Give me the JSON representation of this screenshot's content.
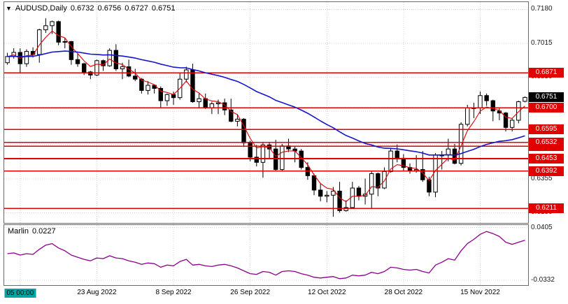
{
  "title": {
    "dropdown_icon": "▼",
    "symbol_period": "AUDUSD,Daily",
    "open": "0.6732",
    "high": "0.6756",
    "low": "0.6727",
    "close": "0.6751"
  },
  "indicator_label": {
    "name": "Marlin",
    "value": "0.0227"
  },
  "price_axis": {
    "ticks": [
      "0.7180",
      "0.7015",
      "0.6850",
      "0.6685",
      "0.6520",
      "0.6355",
      "0.6190"
    ],
    "current": {
      "label": "0.6751",
      "price": 0.6751
    }
  },
  "indicator_axis": {
    "ticks": [
      {
        "label": "0.0405",
        "value": 0.0405
      },
      {
        "label": "-0.0332",
        "value": -0.0332
      }
    ]
  },
  "time_axis": {
    "labels": [
      {
        "text": "05 00:00",
        "bar": 2,
        "highlight": true
      },
      {
        "text": "23 Aug 2022",
        "bar": 14
      },
      {
        "text": "8 Sep 2022",
        "bar": 26
      },
      {
        "text": "26 Sep 2022",
        "bar": 38
      },
      {
        "text": "12 Oct 2022",
        "bar": 50
      },
      {
        "text": "28 Oct 2022",
        "bar": 62
      },
      {
        "text": "15 Nov 2022",
        "bar": 74
      }
    ]
  },
  "colors": {
    "bull": "#ffffff",
    "bear": "#000000",
    "outline": "#000000",
    "ma_fast": "#e00000",
    "ma_slow": "#1515cc",
    "level": "#e00000",
    "level_badge_bg": "#e00000",
    "current_badge_bg": "#000000",
    "indicator_line": "#8b008b",
    "highlight_time_bg": "#00a2a2",
    "grid": "#d6d6d6"
  },
  "chart_data": {
    "type": "candlestick",
    "symbol": "AUDUSD",
    "timeframe": "Daily",
    "price_range": [
      0.614,
      0.7215
    ],
    "candles": [
      [
        "08-03",
        0.692,
        0.6968,
        0.691,
        0.695
      ],
      [
        "08-04",
        0.695,
        0.699,
        0.694,
        0.697
      ],
      [
        "08-05",
        0.697,
        0.699,
        0.687,
        0.6915
      ],
      [
        "08-08",
        0.6915,
        0.6985,
        0.69,
        0.6975
      ],
      [
        "08-09",
        0.6975,
        0.6995,
        0.6945,
        0.696
      ],
      [
        "08-10",
        0.696,
        0.7085,
        0.692,
        0.708
      ],
      [
        "08-11",
        0.708,
        0.7136,
        0.7065,
        0.71
      ],
      [
        "08-12",
        0.71,
        0.7125,
        0.706,
        0.712
      ],
      [
        "08-15",
        0.712,
        0.7125,
        0.7005,
        0.702
      ],
      [
        "08-16",
        0.702,
        0.704,
        0.699,
        0.7023
      ],
      [
        "08-17",
        0.7023,
        0.7026,
        0.691,
        0.6935
      ],
      [
        "08-18",
        0.6935,
        0.6965,
        0.69,
        0.6915
      ],
      [
        "08-19",
        0.6915,
        0.692,
        0.686,
        0.6875
      ],
      [
        "08-22",
        0.6875,
        0.688,
        0.684,
        0.686
      ],
      [
        "08-23",
        0.686,
        0.6935,
        0.6855,
        0.693
      ],
      [
        "08-24",
        0.693,
        0.6935,
        0.688,
        0.6905
      ],
      [
        "08-25",
        0.6905,
        0.699,
        0.69,
        0.698
      ],
      [
        "08-26",
        0.698,
        0.701,
        0.688,
        0.689
      ],
      [
        "08-29",
        0.689,
        0.692,
        0.684,
        0.69
      ],
      [
        "08-30",
        0.69,
        0.6935,
        0.685,
        0.6855
      ],
      [
        "08-31",
        0.6855,
        0.689,
        0.683,
        0.684
      ],
      [
        "09-01",
        0.684,
        0.6845,
        0.677,
        0.6785
      ],
      [
        "09-02",
        0.6785,
        0.683,
        0.6765,
        0.681
      ],
      [
        "09-05",
        0.681,
        0.6815,
        0.677,
        0.6795
      ],
      [
        "09-06",
        0.6795,
        0.6805,
        0.67,
        0.6735
      ],
      [
        "09-07",
        0.6735,
        0.677,
        0.671,
        0.6765
      ],
      [
        "09-08",
        0.6765,
        0.678,
        0.6715,
        0.675
      ],
      [
        "09-09",
        0.675,
        0.687,
        0.674,
        0.684
      ],
      [
        "09-12",
        0.684,
        0.69,
        0.6825,
        0.6885
      ],
      [
        "09-13",
        0.6885,
        0.6915,
        0.6725,
        0.673
      ],
      [
        "09-14",
        0.673,
        0.677,
        0.67,
        0.6745
      ],
      [
        "09-15",
        0.6745,
        0.677,
        0.6695,
        0.67
      ],
      [
        "09-16",
        0.67,
        0.673,
        0.667,
        0.672
      ],
      [
        "09-19",
        0.672,
        0.674,
        0.667,
        0.6725
      ],
      [
        "09-20",
        0.6725,
        0.6745,
        0.6665,
        0.669
      ],
      [
        "09-21",
        0.669,
        0.6745,
        0.663,
        0.6635
      ],
      [
        "09-22",
        0.6635,
        0.667,
        0.661,
        0.6645
      ],
      [
        "09-23",
        0.6645,
        0.665,
        0.651,
        0.653
      ],
      [
        "09-26",
        0.653,
        0.654,
        0.644,
        0.646
      ],
      [
        "09-27",
        0.646,
        0.652,
        0.6415,
        0.6435
      ],
      [
        "09-28",
        0.6435,
        0.6535,
        0.636,
        0.652
      ],
      [
        "09-29",
        0.652,
        0.6535,
        0.6455,
        0.65
      ],
      [
        "09-30",
        0.65,
        0.6545,
        0.6395,
        0.64
      ],
      [
        "10-03",
        0.64,
        0.6525,
        0.639,
        0.6515
      ],
      [
        "10-04",
        0.6515,
        0.655,
        0.6485,
        0.65
      ],
      [
        "10-05",
        0.65,
        0.6515,
        0.6435,
        0.649
      ],
      [
        "10-06",
        0.649,
        0.65,
        0.64,
        0.641
      ],
      [
        "10-07",
        0.641,
        0.6435,
        0.635,
        0.637
      ],
      [
        "10-10",
        0.637,
        0.638,
        0.6275,
        0.63
      ],
      [
        "10-11",
        0.63,
        0.633,
        0.6245,
        0.627
      ],
      [
        "10-12",
        0.627,
        0.6295,
        0.624,
        0.6275
      ],
      [
        "10-13",
        0.6275,
        0.6315,
        0.617,
        0.6295
      ],
      [
        "10-14",
        0.6295,
        0.634,
        0.619,
        0.62
      ],
      [
        "10-17",
        0.62,
        0.625,
        0.6195,
        0.6215
      ],
      [
        "10-18",
        0.6215,
        0.634,
        0.621,
        0.631
      ],
      [
        "10-19",
        0.631,
        0.632,
        0.625,
        0.627
      ],
      [
        "10-20",
        0.627,
        0.6356,
        0.623,
        0.628
      ],
      [
        "10-21",
        0.628,
        0.639,
        0.621,
        0.638
      ],
      [
        "10-24",
        0.638,
        0.6385,
        0.627,
        0.631
      ],
      [
        "10-25",
        0.631,
        0.641,
        0.6305,
        0.639
      ],
      [
        "10-26",
        0.639,
        0.6505,
        0.6385,
        0.649
      ],
      [
        "10-27",
        0.649,
        0.6522,
        0.6435,
        0.6455
      ],
      [
        "10-28",
        0.6455,
        0.6475,
        0.639,
        0.641
      ],
      [
        "10-31",
        0.641,
        0.643,
        0.638,
        0.6395
      ],
      [
        "11-01",
        0.6395,
        0.647,
        0.6385,
        0.64
      ],
      [
        "11-02",
        0.64,
        0.649,
        0.634,
        0.635
      ],
      [
        "11-03",
        0.635,
        0.6365,
        0.627,
        0.629
      ],
      [
        "11-04",
        0.629,
        0.648,
        0.6265,
        0.647
      ],
      [
        "11-07",
        0.647,
        0.649,
        0.64,
        0.647
      ],
      [
        "11-08",
        0.647,
        0.655,
        0.644,
        0.65
      ],
      [
        "11-09",
        0.65,
        0.6525,
        0.6425,
        0.643
      ],
      [
        "11-10",
        0.643,
        0.663,
        0.642,
        0.662
      ],
      [
        "11-11",
        0.662,
        0.6715,
        0.661,
        0.67
      ],
      [
        "11-14",
        0.67,
        0.6725,
        0.665,
        0.67
      ],
      [
        "11-15",
        0.67,
        0.678,
        0.667,
        0.676
      ],
      [
        "11-16",
        0.676,
        0.677,
        0.671,
        0.6735
      ],
      [
        "11-17",
        0.6735,
        0.674,
        0.6635,
        0.6685
      ],
      [
        "11-18",
        0.6685,
        0.67,
        0.664,
        0.6675
      ],
      [
        "11-21",
        0.6675,
        0.668,
        0.6585,
        0.6605
      ],
      [
        "11-22",
        0.6605,
        0.665,
        0.6585,
        0.664
      ],
      [
        "11-23",
        0.664,
        0.6735,
        0.6625,
        0.673
      ],
      [
        "11-24",
        0.6732,
        0.6756,
        0.6727,
        0.6751
      ]
    ],
    "levels": [
      {
        "price": 0.6871,
        "label": "0.6871"
      },
      {
        "price": 0.67,
        "label": "0.6700"
      },
      {
        "price": 0.6595,
        "label": "0.6595"
      },
      {
        "price": 0.6532,
        "label": "0.6532"
      },
      {
        "price": 0.6514,
        "label": "0.6514"
      },
      {
        "price": 0.6453,
        "label": "0.6453"
      },
      {
        "price": 0.6392,
        "label": "0.6392"
      },
      {
        "price": 0.6211,
        "label": "0.6211"
      }
    ],
    "indicator": {
      "name": "Marlin",
      "range": [
        -0.04,
        0.044
      ],
      "values": [
        0.004,
        0.005,
        0.002,
        0.004,
        0.003,
        0.01,
        0.016,
        0.018,
        0.012,
        0.008,
        0.002,
        -0.001,
        -0.004,
        -0.006,
        -0.002,
        -0.003,
        0.001,
        -0.002,
        -0.003,
        -0.006,
        -0.008,
        -0.011,
        -0.009,
        -0.01,
        -0.015,
        -0.012,
        -0.013,
        -0.007,
        -0.004,
        -0.012,
        -0.011,
        -0.013,
        -0.014,
        -0.012,
        -0.011,
        -0.013,
        -0.016,
        -0.02,
        -0.024,
        -0.025,
        -0.021,
        -0.022,
        -0.026,
        -0.021,
        -0.02,
        -0.021,
        -0.024,
        -0.026,
        -0.029,
        -0.03,
        -0.029,
        -0.028,
        -0.031,
        -0.03,
        -0.026,
        -0.027,
        -0.026,
        -0.022,
        -0.024,
        -0.021,
        -0.015,
        -0.016,
        -0.018,
        -0.019,
        -0.018,
        -0.021,
        -0.023,
        -0.012,
        -0.008,
        -0.003,
        -0.005,
        0.008,
        0.018,
        0.024,
        0.031,
        0.035,
        0.032,
        0.028,
        0.02,
        0.017,
        0.02,
        0.0227
      ]
    }
  }
}
